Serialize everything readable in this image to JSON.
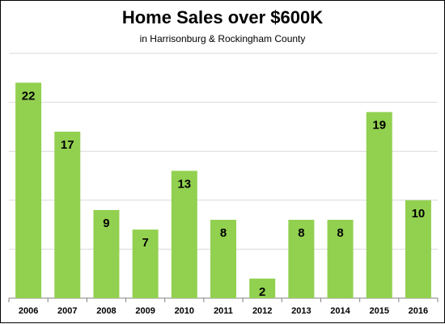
{
  "chart_data": {
    "type": "bar",
    "title": "Home Sales over $600K",
    "subtitle": "in Harrisonburg & Rockingham County",
    "categories": [
      "2006",
      "2007",
      "2008",
      "2009",
      "2010",
      "2011",
      "2012",
      "2013",
      "2014",
      "2015",
      "2016"
    ],
    "values": [
      22,
      17,
      9,
      7,
      13,
      8,
      2,
      8,
      8,
      19,
      10
    ],
    "ylim": [
      0,
      25
    ],
    "grid": true,
    "gridlines_at": [
      5,
      10,
      15,
      20,
      25
    ],
    "bar_color": "#92d050",
    "grid_color": "#d9d9d9",
    "axis_color": "#808080",
    "legend": "none"
  }
}
